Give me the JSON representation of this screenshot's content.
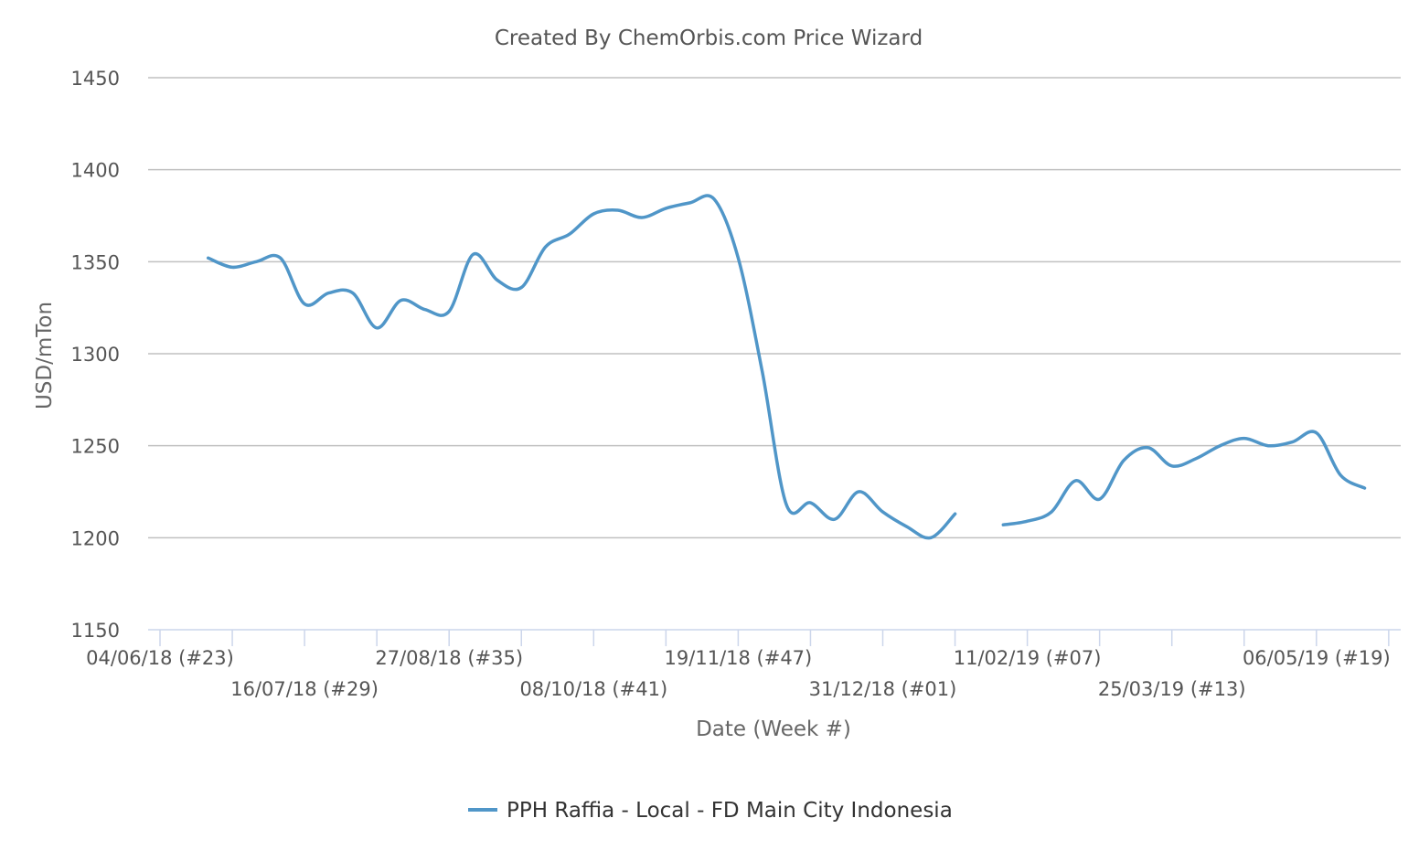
{
  "chart_data": {
    "type": "line",
    "title": "Created By ChemOrbis.com Price Wizard",
    "xlabel": "Date (Week #)",
    "ylabel": "USD/mTon",
    "ylim": [
      1150,
      1450
    ],
    "yticks": [
      1150,
      1200,
      1250,
      1300,
      1350,
      1400,
      1450
    ],
    "grid": true,
    "legend_position": "bottom",
    "x_tick_labels": [
      "04/06/18 (#23)",
      "16/07/18 (#29)",
      "27/08/18 (#35)",
      "08/10/18 (#41)",
      "19/11/18 (#47)",
      "31/12/18 (#01)",
      "11/02/19 (#07)",
      "25/03/19 (#13)",
      "06/05/19 (#19)"
    ],
    "x_tick_weeks_from_start": [
      0,
      6,
      12,
      18,
      24,
      30,
      36,
      42,
      48
    ],
    "x_minor_ticks_weeks_from_start": [
      3,
      9,
      15,
      21,
      27,
      33,
      39,
      45,
      51
    ],
    "series": [
      {
        "name": "PPH Raffia - Local - FD Main City Indonesia",
        "color": "#5096c8",
        "points": [
          {
            "x": 2,
            "y": 1352
          },
          {
            "x": 3,
            "y": 1347
          },
          {
            "x": 4,
            "y": 1350
          },
          {
            "x": 5,
            "y": 1352
          },
          {
            "x": 6,
            "y": 1327
          },
          {
            "x": 7,
            "y": 1333
          },
          {
            "x": 8,
            "y": 1333
          },
          {
            "x": 9,
            "y": 1314
          },
          {
            "x": 10,
            "y": 1329
          },
          {
            "x": 11,
            "y": 1324
          },
          {
            "x": 12,
            "y": 1323
          },
          {
            "x": 13,
            "y": 1354
          },
          {
            "x": 14,
            "y": 1340
          },
          {
            "x": 15,
            "y": 1336
          },
          {
            "x": 16,
            "y": 1358
          },
          {
            "x": 17,
            "y": 1365
          },
          {
            "x": 18,
            "y": 1376
          },
          {
            "x": 19,
            "y": 1378
          },
          {
            "x": 20,
            "y": 1374
          },
          {
            "x": 21,
            "y": 1379
          },
          {
            "x": 22,
            "y": 1382
          },
          {
            "x": 23,
            "y": 1384
          },
          {
            "x": 24,
            "y": 1352
          },
          {
            "x": 25,
            "y": 1290
          },
          {
            "x": 26,
            "y": 1218
          },
          {
            "x": 27,
            "y": 1219
          },
          {
            "x": 28,
            "y": 1210
          },
          {
            "x": 29,
            "y": 1225
          },
          {
            "x": 30,
            "y": 1214
          },
          {
            "x": 31,
            "y": 1206
          },
          {
            "x": 32,
            "y": 1200
          },
          {
            "x": 33,
            "y": 1213
          },
          {
            "x": 34,
            "y": null
          },
          {
            "x": 35,
            "y": 1207
          },
          {
            "x": 36,
            "y": 1209
          },
          {
            "x": 37,
            "y": 1214
          },
          {
            "x": 38,
            "y": 1231
          },
          {
            "x": 39,
            "y": 1221
          },
          {
            "x": 40,
            "y": 1242
          },
          {
            "x": 41,
            "y": 1249
          },
          {
            "x": 42,
            "y": 1239
          },
          {
            "x": 43,
            "y": 1243
          },
          {
            "x": 44,
            "y": 1250
          },
          {
            "x": 45,
            "y": 1254
          },
          {
            "x": 46,
            "y": 1250
          },
          {
            "x": 47,
            "y": 1252
          },
          {
            "x": 48,
            "y": 1257
          },
          {
            "x": 49,
            "y": 1234
          },
          {
            "x": 50,
            "y": 1227
          }
        ]
      }
    ]
  }
}
